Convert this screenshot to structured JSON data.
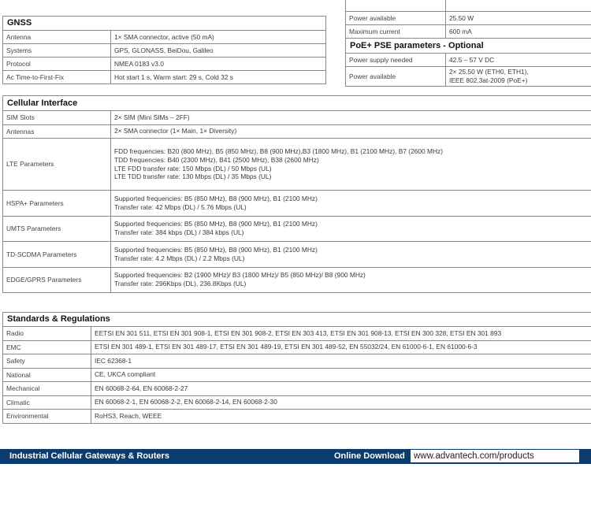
{
  "power_table": {
    "rows": [
      {
        "label": "Power available",
        "value": "25.50 W"
      },
      {
        "label": "Maximum current",
        "value": "600 mA"
      }
    ],
    "pse_title": "PoE+ PSE parameters - Optional",
    "pse_rows": [
      {
        "label": "Power supply needed",
        "value": [
          "42.5 – 57 V DC"
        ]
      },
      {
        "label": "Power available",
        "value": [
          "2× 25.50 W (ETH0, ETH1),",
          "IEEE 802.3at-2009 (PoE+)"
        ]
      }
    ]
  },
  "gnss": {
    "title": "GNSS",
    "rows": [
      {
        "label": "Antenna",
        "value": "1× SMA connector, active (50 mA)"
      },
      {
        "label": "Systems",
        "value": "GPS, GLONASS, BeiDou, Galileo"
      },
      {
        "label": "Protocol",
        "value": "NMEA 0183 v3.0"
      },
      {
        "label": "Ac Time-to-First-Fix",
        "value": "Hot start 1 s, Warm start: 29 s, Cold 32 s"
      }
    ]
  },
  "cellular": {
    "title": "Cellular Interface",
    "rows": [
      {
        "label": "SIM Slots",
        "lines": [
          "2× SIM (Mini SIMs – 2FF)"
        ]
      },
      {
        "label": "Antennas",
        "lines": [
          "2× SMA connector (1× Main, 1× Diversity)"
        ]
      },
      {
        "label": "LTE Parameters",
        "lines": [
          "FDD frequencies: B20 (800 MHz), B5 (850 MHz), B8 (900 MHz),B3 (1800 MHz), B1 (2100 MHz), B7 (2600 MHz)",
          "TDD frequencies: B40 (2300 MHz), B41 (2500 MHz), B38 (2600 MHz)",
          "LTE FDD transfer rate: 150 Mbps (DL) / 50 Mbps (UL)",
          "LTE TDD transfer rate: 130 Mbps (DL) / 35 Mbps (UL)"
        ]
      },
      {
        "label": "HSPA+ Parameters",
        "lines": [
          "Supported frequencies: B5 (850 MHz), B8 (900 MHz), B1 (2100 MHz)",
          "Transfer rate: 42 Mbps (DL) / 5.76 Mbps (UL)"
        ]
      },
      {
        "label": "UMTS Parameters",
        "lines": [
          "Supported frequencies: B5 (850 MHz), B8 (900 MHz), B1 (2100 MHz)",
          "Transfer rate: 384 kbps (DL) / 384 kbps (UL)"
        ]
      },
      {
        "label": "TD-SCDMA Parameters",
        "lines": [
          "Supported frequencies: B5 (850 MHz), B8 (900 MHz), B1 (2100 MHz)",
          "Transfer rate: 4.2 Mbps (DL) / 2.2 Mbps (UL)"
        ]
      },
      {
        "label": "EDGE/GPRS Parameters",
        "lines": [
          "Supported frequencies: B2 (1900 MHz)/ B3 (1800 MHz)/ B5 (850 MHz)/ B8 (900 MHz)",
          "Transfer rate: 296Kbps (DL), 236.8Kbps (UL)"
        ]
      }
    ]
  },
  "standards": {
    "title": "Standards & Regulations",
    "rows": [
      {
        "label": "Radio",
        "value": "EETSI EN 301 511, ETSI EN 301 908-1, ETSI EN 301 908-2, ETSI EN 303 413, ETSI EN 301 908-13, ETSI EN 300 328, ETSI EN 301 893"
      },
      {
        "label": "EMC",
        "value": "ETSI EN 301 489-1, ETSI EN 301 489-17, ETSI EN 301 489-19, ETSI EN 301 489-52, EN 55032/24, EN 61000-6-1, EN 61000-6-3"
      },
      {
        "label": "Safety",
        "value": "IEC 62368-1"
      },
      {
        "label": "National",
        "value": "CE, UKCA compliant"
      },
      {
        "label": "Mechanical",
        "value": "EN 60068-2-64, EN 60068-2-27"
      },
      {
        "label": "Climatic",
        "value": "EN 60068-2-1, EN 60068-2-2, EN 60068-2-14, EN 60068-2-30"
      },
      {
        "label": "Environmental",
        "value": "RoHS3, Reach, WEEE"
      }
    ]
  },
  "footer": {
    "category": "Industrial Cellular Gateways & Routers",
    "download_label": "Online Download",
    "url": "www.advantech.com/products",
    "bar_color": "#0a3d6e"
  }
}
